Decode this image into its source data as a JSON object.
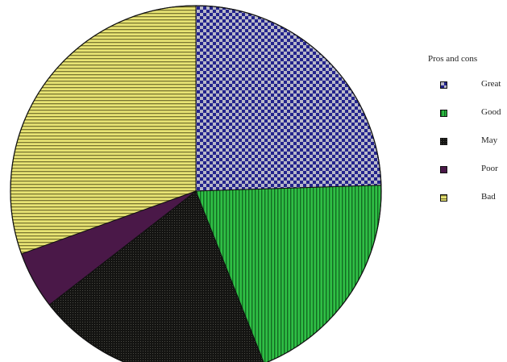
{
  "chart_data": {
    "type": "pie",
    "legend_title": "Pros and cons",
    "legend_position": "right",
    "categories": [
      "Great",
      "Good",
      "May",
      "Poor",
      "Bad"
    ],
    "values": [
      24.5,
      19.5,
      20.5,
      5.0,
      30.5
    ],
    "colors": {
      "Great": "#23238c",
      "Good": "#22a63a",
      "May": "#1c1c1a",
      "Poor": "#4a1848",
      "Bad": "#e2df6c"
    },
    "patterns": {
      "Great": "checker",
      "Good": "vertical-stripes",
      "May": "fine-dots",
      "Poor": "solid",
      "Bad": "horizontal-stripes"
    },
    "start_angle_deg": 0,
    "direction": "clockwise"
  }
}
